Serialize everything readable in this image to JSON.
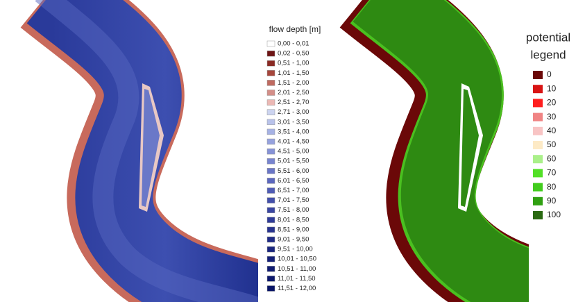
{
  "depth_legend": {
    "title": "flow depth [m]",
    "items": [
      {
        "label": "0,00 - 0,01",
        "color": "#ffffff"
      },
      {
        "label": "0,02 - 0,50",
        "color": "#6e1414"
      },
      {
        "label": "0,51 - 1,00",
        "color": "#8a2a24"
      },
      {
        "label": "1,01 - 1,50",
        "color": "#a6463c"
      },
      {
        "label": "1,51 - 2,00",
        "color": "#bf6a60"
      },
      {
        "label": "2,01 - 2,50",
        "color": "#d38e88"
      },
      {
        "label": "2,51 - 2,70",
        "color": "#ebb8b4"
      },
      {
        "label": "2,71 - 3,00",
        "color": "#ccd4f0"
      },
      {
        "label": "3,01 - 3,50",
        "color": "#b8c2ea"
      },
      {
        "label": "3,51 - 4,00",
        "color": "#a6b2e4"
      },
      {
        "label": "4,01 - 4,50",
        "color": "#96a2de"
      },
      {
        "label": "4,51 - 5,00",
        "color": "#8692d6"
      },
      {
        "label": "5,01 - 5,50",
        "color": "#7884ce"
      },
      {
        "label": "5,51 - 6,00",
        "color": "#6a76c6"
      },
      {
        "label": "6,01 - 6,50",
        "color": "#5c68be"
      },
      {
        "label": "6,51 - 7,00",
        "color": "#505cb4"
      },
      {
        "label": "7,01 - 7,50",
        "color": "#4450aa"
      },
      {
        "label": "7,51 - 8,00",
        "color": "#3a46a2"
      },
      {
        "label": "8,01 - 8,50",
        "color": "#303c98"
      },
      {
        "label": "8,51 - 9,00",
        "color": "#28348e"
      },
      {
        "label": "9,01 - 9,50",
        "color": "#202c86"
      },
      {
        "label": "9,51 - 10,00",
        "color": "#1a267e"
      },
      {
        "label": "10,01 - 10,50",
        "color": "#142078"
      },
      {
        "label": "10,51 - 11,00",
        "color": "#101c72"
      },
      {
        "label": "11,01 - 11,50",
        "color": "#0c186c"
      },
      {
        "label": "11,51 - 12,00",
        "color": "#081466"
      }
    ]
  },
  "potential_legend": {
    "title_lines": [
      "potential",
      "legend"
    ],
    "items": [
      {
        "label": "0",
        "color": "#6b0808"
      },
      {
        "label": "10",
        "color": "#d81414"
      },
      {
        "label": "20",
        "color": "#ff1e1e"
      },
      {
        "label": "30",
        "color": "#f08484"
      },
      {
        "label": "40",
        "color": "#f8c4c4"
      },
      {
        "label": "50",
        "color": "#fdeac6"
      },
      {
        "label": "60",
        "color": "#aaf08a"
      },
      {
        "label": "70",
        "color": "#52e026"
      },
      {
        "label": "80",
        "color": "#42cc1e"
      },
      {
        "label": "90",
        "color": "#30a012"
      },
      {
        "label": "100",
        "color": "#2a6a12"
      }
    ]
  }
}
